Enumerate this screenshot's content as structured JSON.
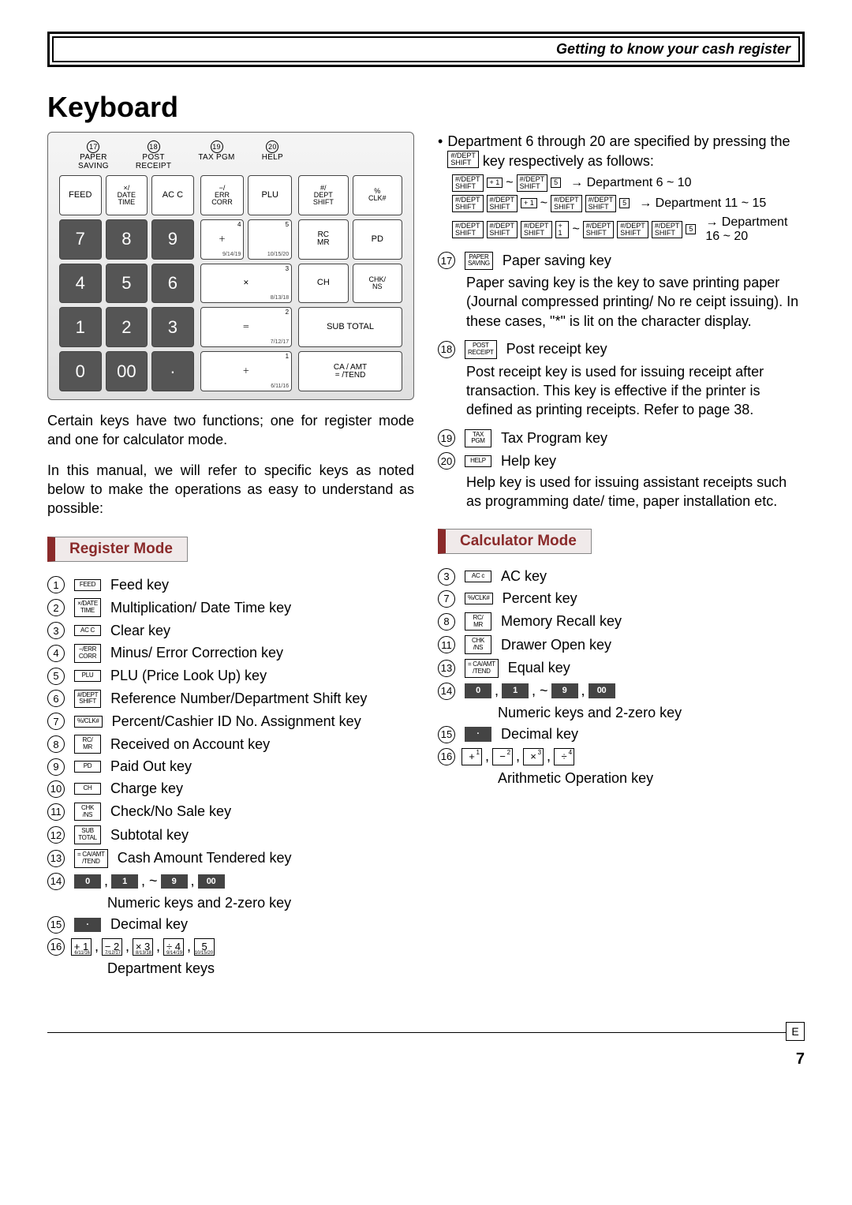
{
  "header": {
    "title": "Getting to know your cash register"
  },
  "section_title": "Keyboard",
  "kb_top": {
    "a": "PAPER\nSAVING",
    "b": "POST\nRECEIPT",
    "c": "TAX PGM",
    "d": "HELP"
  },
  "kb_keys": {
    "feed": "FEED",
    "date": "×/\nDATE\nTIME",
    "ac": "AC C",
    "err": "−/\nERR\nCORR",
    "plu": "PLU",
    "dshift": "#/\nDEPT\nSHIFT",
    "clk": "%\nCLK#",
    "n7": "7",
    "n8": "8",
    "n9": "9",
    "n4": "4",
    "n5": "5",
    "n6": "6",
    "n1": "1",
    "n2": "2",
    "n3": "3",
    "n0": "0",
    "n00": "00",
    "dot": "·",
    "d4": "4\n9/14/19",
    "d5": "5\n10/15/20",
    "d3": "3\n8/13/18",
    "d2": "2\n7/12/17",
    "d1": "1\n6/11/16",
    "rc": "RC\nMR",
    "pd": "PD",
    "ch": "CH",
    "chk": "CHK/\nNS",
    "sub": "SUB TOTAL",
    "ca": "CA / AMT\n= /TEND"
  },
  "intro1": "Certain keys have two functions; one for register mode and one for calculator mode.",
  "intro2": "In this manual, we will refer to specific keys as noted below to make the operations as easy to understand as possible:",
  "register_mode": {
    "title": "Register Mode",
    "items": [
      {
        "n": "1",
        "k": "FEED",
        "t": "Feed key"
      },
      {
        "n": "2",
        "k": "×/DATE\nTIME",
        "t": "Multiplication/ Date Time key"
      },
      {
        "n": "3",
        "k": "AC C",
        "t": "Clear key"
      },
      {
        "n": "4",
        "k": "−/ERR\nCORR",
        "t": "Minus/ Error Correction key"
      },
      {
        "n": "5",
        "k": "PLU",
        "t": "PLU (Price Look Up) key"
      },
      {
        "n": "6",
        "k": "#/DEPT\nSHIFT",
        "t": "Reference Number/Department Shift key"
      },
      {
        "n": "7",
        "k": "%/CLK#",
        "t": "Percent/Cashier ID No. Assignment key"
      },
      {
        "n": "8",
        "k": "RC/\nMR",
        "t": "Received on Account key"
      },
      {
        "n": "9",
        "k": "PD",
        "t": "Paid Out key"
      },
      {
        "n": "10",
        "k": "CH",
        "t": "Charge key"
      },
      {
        "n": "11",
        "k": "CHK\n/NS",
        "t": "Check/No Sale key"
      },
      {
        "n": "12",
        "k": "SUB\nTOTAL",
        "t": "Subtotal key"
      },
      {
        "n": "13",
        "k": "= CA/AMT\n/TEND",
        "t": "Cash Amount Tendered key"
      }
    ],
    "n14": "14",
    "n14_seq": [
      "0",
      "1",
      "9",
      "00"
    ],
    "n14_text": "Numeric keys and 2-zero key",
    "n15": "15",
    "n15_k": "·",
    "n15_text": "Decimal key",
    "n16": "16",
    "n16_seq": [
      "+ 1",
      "− 2",
      "× 3",
      "÷ 4",
      "5"
    ],
    "n16_sub": [
      "6/11/16",
      "7/12/17",
      "8/13/18",
      "9/14/19",
      "10/15/20"
    ],
    "n16_text": "Department keys"
  },
  "dept_intro": "Department 6 through 20 are specified by pressing the ",
  "dept_intro_key": "#/DEPT\nSHIFT",
  "dept_intro2": " key respectively as follows:",
  "dept_lines": [
    {
      "left_presses": 1,
      "lk": "+ 1",
      "rk": "5",
      "result": "Department 6 ~ 10"
    },
    {
      "left_presses": 2,
      "lk": "+ 1",
      "rk": "5",
      "result": "Department 11 ~ 15"
    },
    {
      "left_presses": 3,
      "lk": "+ 1",
      "rk": "5",
      "result": "Department 16 ~ 20"
    }
  ],
  "r17": {
    "n": "17",
    "k": "PAPER\nSAVING",
    "t": "Paper saving key",
    "explain": "Paper saving key is the key to save printing paper (Journal compressed printing/ No re ceipt issuing). In these cases, \"*\" is lit on the character display."
  },
  "r18": {
    "n": "18",
    "k": "POST\nRECEIPT",
    "t": "Post receipt key",
    "explain": "Post receipt key is used for issuing receipt after transaction. This key is effective if the printer is defined as printing receipts. Refer to page 38."
  },
  "r19": {
    "n": "19",
    "k": "TAX\nPGM",
    "t": "Tax Program key"
  },
  "r20": {
    "n": "20",
    "k": "HELP",
    "t": "Help key",
    "explain": "Help key is used for issuing assistant receipts such as programming date/ time, paper installation etc."
  },
  "calc_mode": {
    "title": "Calculator Mode",
    "items": [
      {
        "n": "3",
        "k": "AC c",
        "t": "AC key"
      },
      {
        "n": "7",
        "k": "%/CLK#",
        "t": "Percent key"
      },
      {
        "n": "8",
        "k": "RC/\nMR",
        "t": "Memory Recall key"
      },
      {
        "n": "11",
        "k": "CHK\n/NS",
        "t": "Drawer Open key"
      },
      {
        "n": "13",
        "k": "= CA/AMT\n/TEND",
        "t": "Equal key"
      }
    ],
    "n14": "14",
    "n14_seq": [
      "0",
      "1",
      "9",
      "00"
    ],
    "n14_text": "Numeric keys and 2-zero key",
    "n15": "15",
    "n15_k": "·",
    "n15_text": "Decimal key",
    "n16": "16",
    "n16_ops": [
      "+",
      "−",
      "×",
      "÷"
    ],
    "n16_sup": [
      "1",
      "2",
      "3",
      "4"
    ],
    "n16_text": "Arithmetic Operation key"
  },
  "footer": {
    "e": "E",
    "page": "7"
  }
}
